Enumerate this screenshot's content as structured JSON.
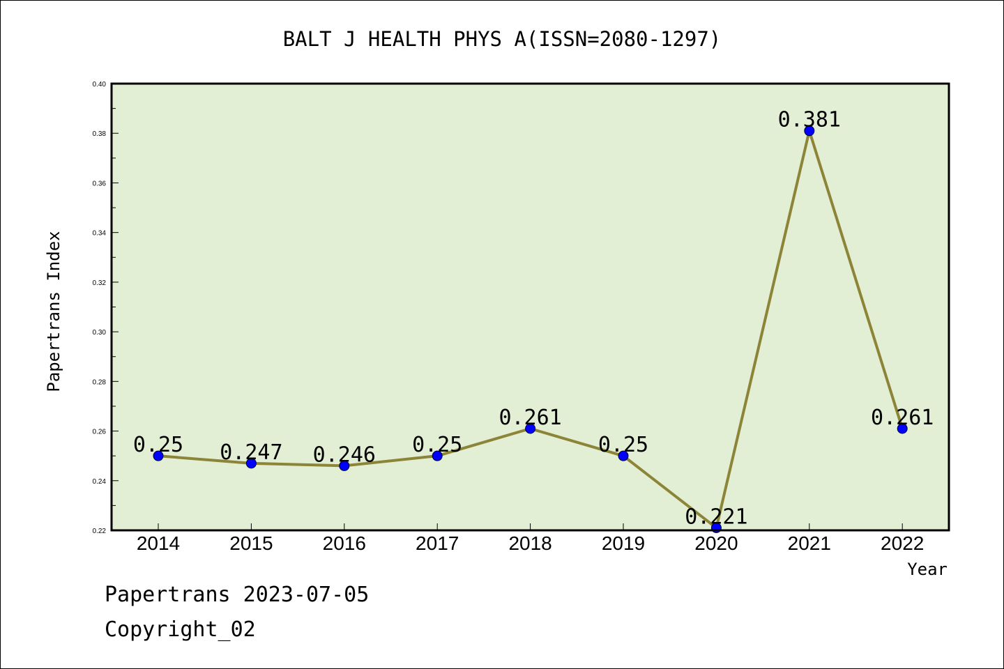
{
  "colors": {
    "plot_bg": "#e2efd5",
    "line": "#8c8437",
    "marker": "#0000ff",
    "axis": "#000000"
  },
  "chart_data": {
    "type": "line",
    "title": "BALT J HEALTH PHYS A(ISSN=2080-1297)",
    "xlabel": "Year",
    "ylabel": "Papertrans Index",
    "categories": [
      "2014",
      "2015",
      "2016",
      "2017",
      "2018",
      "2019",
      "2020",
      "2021",
      "2022"
    ],
    "series": [
      {
        "values": [
          0.25,
          0.247,
          0.246,
          0.25,
          0.261,
          0.25,
          0.221,
          0.381,
          0.261
        ],
        "labels": [
          "0.25",
          "0.247",
          "0.246",
          "0.25",
          "0.261",
          "0.25",
          "0.221",
          "0.381",
          "0.261"
        ]
      }
    ],
    "ylim": [
      0.22,
      0.4
    ],
    "yticks": [
      "0.22",
      "0.24",
      "0.26",
      "0.28",
      "0.30",
      "0.32",
      "0.34",
      "0.36",
      "0.38",
      "0.40"
    ],
    "grid": false,
    "legend": "none"
  },
  "footer": {
    "line1": "Papertrans 2023-07-05",
    "line2": "Copyright_02"
  }
}
